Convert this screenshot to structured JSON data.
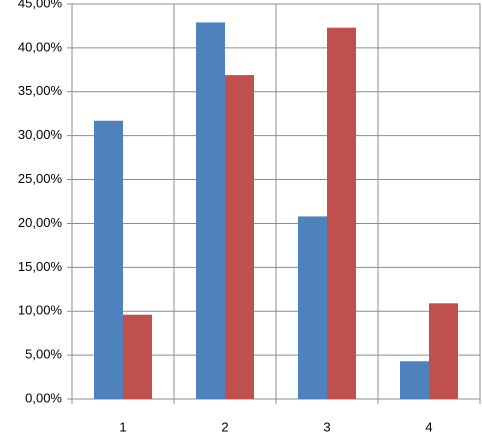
{
  "chart_data": {
    "type": "bar",
    "categories": [
      "1",
      "2",
      "3",
      "4"
    ],
    "series": [
      {
        "color": "#4f81bd",
        "values": [
          31.7,
          42.9,
          20.8,
          4.3
        ]
      },
      {
        "color": "#c0504d",
        "values": [
          9.6,
          36.9,
          42.3,
          10.9
        ]
      }
    ],
    "ylim": [
      0,
      45
    ],
    "yticks": [
      {
        "value": 0,
        "label": "0,00%"
      },
      {
        "value": 5,
        "label": "5,00%"
      },
      {
        "value": 10,
        "label": "10,00%"
      },
      {
        "value": 15,
        "label": "15,00%"
      },
      {
        "value": 20,
        "label": "20,00%"
      },
      {
        "value": 25,
        "label": "25,00%"
      },
      {
        "value": 30,
        "label": "30,00%"
      },
      {
        "value": 35,
        "label": "35,00%"
      },
      {
        "value": 40,
        "label": "40,00%"
      },
      {
        "value": 45,
        "label": "45,00%"
      }
    ],
    "grid": true
  }
}
